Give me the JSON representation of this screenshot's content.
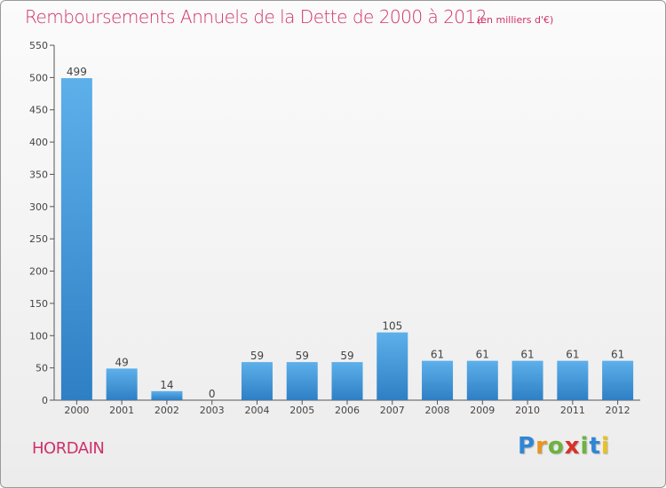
{
  "chart_data": {
    "type": "bar",
    "title": "Remboursements Annuels de la Dette de 2000 à 2012",
    "subtitle": "(en milliers d'€)",
    "categories": [
      "2000",
      "2001",
      "2002",
      "2003",
      "2004",
      "2005",
      "2006",
      "2007",
      "2008",
      "2009",
      "2010",
      "2011",
      "2012"
    ],
    "values": [
      499,
      49,
      14,
      0,
      59,
      59,
      59,
      105,
      61,
      61,
      61,
      61,
      61
    ],
    "ylim": [
      0,
      550
    ],
    "yticks": [
      0,
      50,
      100,
      150,
      200,
      250,
      300,
      350,
      400,
      450,
      500,
      550
    ],
    "grid": false,
    "bar_color": "#3a8fd6"
  },
  "footer": {
    "town": "HORDAIN",
    "brand_letters": [
      "P",
      "r",
      "o",
      "x",
      "i",
      "t",
      "i"
    ],
    "brand_colors": [
      "#2f86d6",
      "#e8961e",
      "#6cb33f",
      "#d8302a",
      "#6cb33f",
      "#2f86d6",
      "#e8c21e"
    ]
  }
}
